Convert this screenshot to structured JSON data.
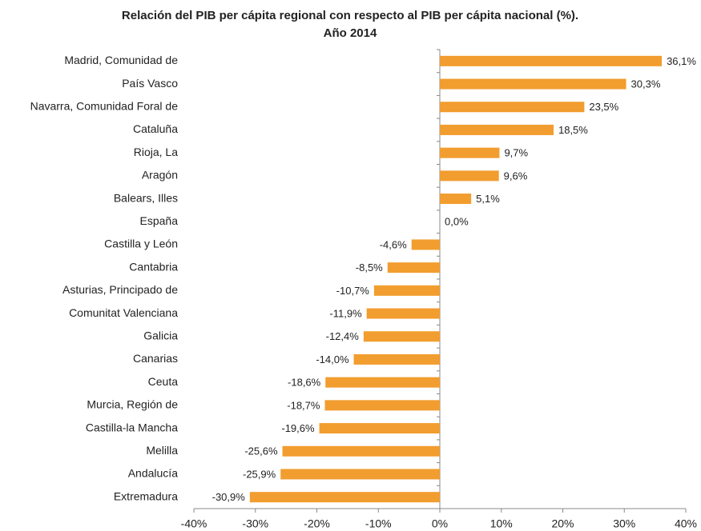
{
  "chart_data": {
    "type": "hbar",
    "title": [
      "Relación del PIB per cápita regional  con respecto al  PIB per cápita nacional (%).",
      "Año 2014"
    ],
    "categories": [
      "Madrid, Comunidad de",
      "País Vasco",
      "Navarra, Comunidad Foral de",
      "Cataluña",
      "Rioja, La",
      "Aragón",
      "Balears, Illes",
      "España",
      "Castilla y León",
      "Cantabria",
      "Asturias, Principado de",
      "Comunitat Valenciana",
      "Galicia",
      "Canarias",
      "Ceuta",
      "Murcia, Región de",
      "Castilla-la Mancha",
      "Melilla",
      "Andalucía",
      "Extremadura"
    ],
    "values": [
      36.1,
      30.3,
      23.5,
      18.5,
      9.7,
      9.6,
      5.1,
      0.0,
      -4.6,
      -8.5,
      -10.7,
      -11.9,
      -12.4,
      -14.0,
      -18.6,
      -18.7,
      -19.6,
      -25.6,
      -25.9,
      -30.9
    ],
    "value_labels": [
      "36,1%",
      "30,3%",
      "23,5%",
      "18,5%",
      "9,7%",
      "9,6%",
      "5,1%",
      "0,0%",
      "-4,6%",
      "-8,5%",
      "-10,7%",
      "-11,9%",
      "-12,4%",
      "-14,0%",
      "-18,6%",
      "-18,7%",
      "-19,6%",
      "-25,6%",
      "-25,9%",
      "-30,9%"
    ],
    "color": "#f29d2f",
    "xlim": [
      -40,
      40
    ],
    "xticks": [
      {
        "value": -40,
        "label": "-40%"
      },
      {
        "value": -30,
        "label": "-30%"
      },
      {
        "value": -20,
        "label": "-20%"
      },
      {
        "value": -10,
        "label": "-10%"
      },
      {
        "value": 0,
        "label": "0%"
      },
      {
        "value": 10,
        "label": "10%"
      },
      {
        "value": 20,
        "label": "20%"
      },
      {
        "value": 30,
        "label": "30%"
      },
      {
        "value": 40,
        "label": "40%"
      }
    ]
  }
}
